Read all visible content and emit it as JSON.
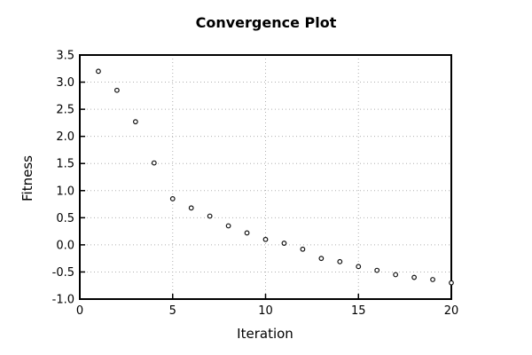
{
  "window": {
    "background": "#ffffff"
  },
  "chart_data": {
    "type": "scatter",
    "title": "Convergence Plot",
    "xlabel": "Iteration",
    "ylabel": "Fitness",
    "series": [
      {
        "name": "fitness",
        "x": [
          1,
          2,
          3,
          4,
          5,
          6,
          7,
          8,
          9,
          10,
          11,
          12,
          13,
          14,
          15,
          16,
          17,
          18,
          19,
          20
        ],
        "y": [
          3.2,
          2.85,
          2.27,
          1.51,
          0.85,
          0.68,
          0.53,
          0.35,
          0.22,
          0.1,
          0.03,
          -0.08,
          -0.25,
          -0.31,
          -0.4,
          -0.47,
          -0.55,
          -0.6,
          -0.64,
          -0.7
        ]
      }
    ],
    "xlim": [
      0,
      20
    ],
    "ylim": [
      -1.0,
      3.5
    ],
    "xticks": [
      0,
      5,
      10,
      15,
      20
    ],
    "yticks": [
      3.5,
      3.0,
      2.5,
      2.0,
      1.5,
      1.0,
      0.5,
      0.0,
      -0.5,
      -1.0
    ],
    "grid": {
      "style": "dotted",
      "color": "#b0b0b0",
      "x_at": [
        5,
        10,
        15
      ],
      "y_at": [
        3.0,
        2.5,
        2.0,
        1.5,
        1.0,
        0.5,
        0.0,
        -0.5
      ]
    },
    "legend": "none",
    "marker": {
      "shape": "open-circle",
      "stroke": "#111111",
      "fill": "#ffffff"
    },
    "colors": {
      "axis": "#000000",
      "text": "#000000",
      "background": "#ffffff"
    }
  }
}
